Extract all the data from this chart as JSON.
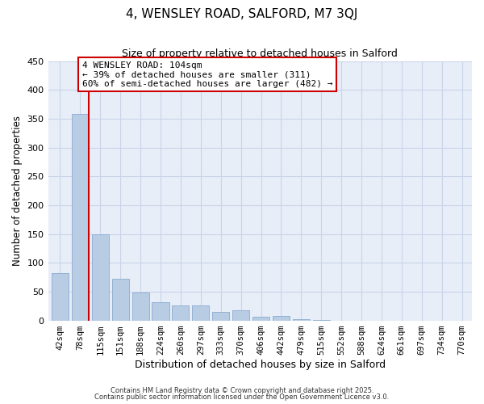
{
  "title": "4, WENSLEY ROAD, SALFORD, M7 3QJ",
  "subtitle": "Size of property relative to detached houses in Salford",
  "xlabel": "Distribution of detached houses by size in Salford",
  "ylabel": "Number of detached properties",
  "bar_color": "#b8cce4",
  "bar_edge_color": "#8aaad0",
  "background_color": "#ffffff",
  "axes_bg_color": "#e8eef8",
  "grid_color": "#c8d4e8",
  "categories": [
    "42sqm",
    "78sqm",
    "115sqm",
    "151sqm",
    "188sqm",
    "224sqm",
    "260sqm",
    "297sqm",
    "333sqm",
    "370sqm",
    "406sqm",
    "442sqm",
    "479sqm",
    "515sqm",
    "552sqm",
    "588sqm",
    "624sqm",
    "661sqm",
    "697sqm",
    "734sqm",
    "770sqm"
  ],
  "values": [
    82,
    358,
    150,
    72,
    48,
    32,
    26,
    26,
    15,
    18,
    6,
    8,
    2,
    1,
    0,
    0,
    0,
    0,
    0,
    0,
    0
  ],
  "ylim": [
    0,
    450
  ],
  "yticks": [
    0,
    50,
    100,
    150,
    200,
    250,
    300,
    350,
    400,
    450
  ],
  "vline_color": "#cc0000",
  "annotation_line1": "4 WENSLEY ROAD: 104sqm",
  "annotation_line2": "← 39% of detached houses are smaller (311)",
  "annotation_line3": "60% of semi-detached houses are larger (482) →",
  "annotation_box_color": "#ffffff",
  "annotation_border_color": "#cc0000",
  "footer_line1": "Contains HM Land Registry data © Crown copyright and database right 2025.",
  "footer_line2": "Contains public sector information licensed under the Open Government Licence v3.0."
}
